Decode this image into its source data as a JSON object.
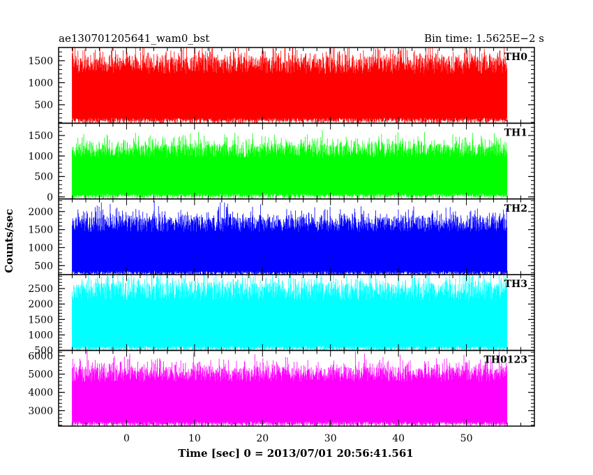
{
  "header": {
    "left_title": "ae130701205641_wam0_bst",
    "right_title": "Bin time: 1.5625E−2 s"
  },
  "chart_data": {
    "type": "line",
    "xlabel": "Time [sec] 0 = 2013/07/01 20:56:41.561",
    "ylabel": "Counts/sec",
    "xlim": [
      -10,
      60
    ],
    "x_ticks": [
      0,
      10,
      20,
      30,
      40,
      50
    ],
    "x_tick_labels": [
      "0",
      "10",
      "20",
      "30",
      "40",
      "50"
    ],
    "x_minor_step": 2,
    "data_x_range": [
      -8,
      56
    ],
    "panels": [
      {
        "name": "TH0",
        "color": "#ff0000",
        "ylim": [
          80,
          1800
        ],
        "y_ticks": [
          500,
          1000,
          1500
        ],
        "y_tick_labels": [
          "500",
          "1000",
          "1500"
        ],
        "baseline": 200,
        "center": 850,
        "peak": 1800
      },
      {
        "name": "TH1",
        "color": "#00ff00",
        "ylim": [
          -50,
          1800
        ],
        "y_ticks": [
          0,
          500,
          1000,
          1500
        ],
        "y_tick_labels": [
          "0",
          "500",
          "1000",
          "1500"
        ],
        "baseline": 80,
        "center": 650,
        "peak": 1750
      },
      {
        "name": "TH2",
        "color": "#0000ff",
        "ylim": [
          250,
          2350
        ],
        "y_ticks": [
          500,
          1000,
          1500,
          2000
        ],
        "y_tick_labels": [
          "500",
          "1000",
          "1500",
          "2000"
        ],
        "baseline": 350,
        "center": 1050,
        "peak": 2300
      },
      {
        "name": "TH3",
        "color": "#00ffff",
        "ylim": [
          500,
          2950
        ],
        "y_ticks": [
          500,
          1000,
          1500,
          2000,
          2500
        ],
        "y_tick_labels": [
          "500",
          "1000",
          "1500",
          "2000",
          "2500"
        ],
        "baseline": 650,
        "center": 1600,
        "peak": 2950
      },
      {
        "name": "TH0123",
        "color": "#ff00ff",
        "ylim": [
          2150,
          6300
        ],
        "y_ticks": [
          3000,
          4000,
          5000,
          6000
        ],
        "y_tick_labels": [
          "3000",
          "4000",
          "5000",
          "6000"
        ],
        "baseline": 2400,
        "center": 3800,
        "peak": 6300
      }
    ]
  }
}
